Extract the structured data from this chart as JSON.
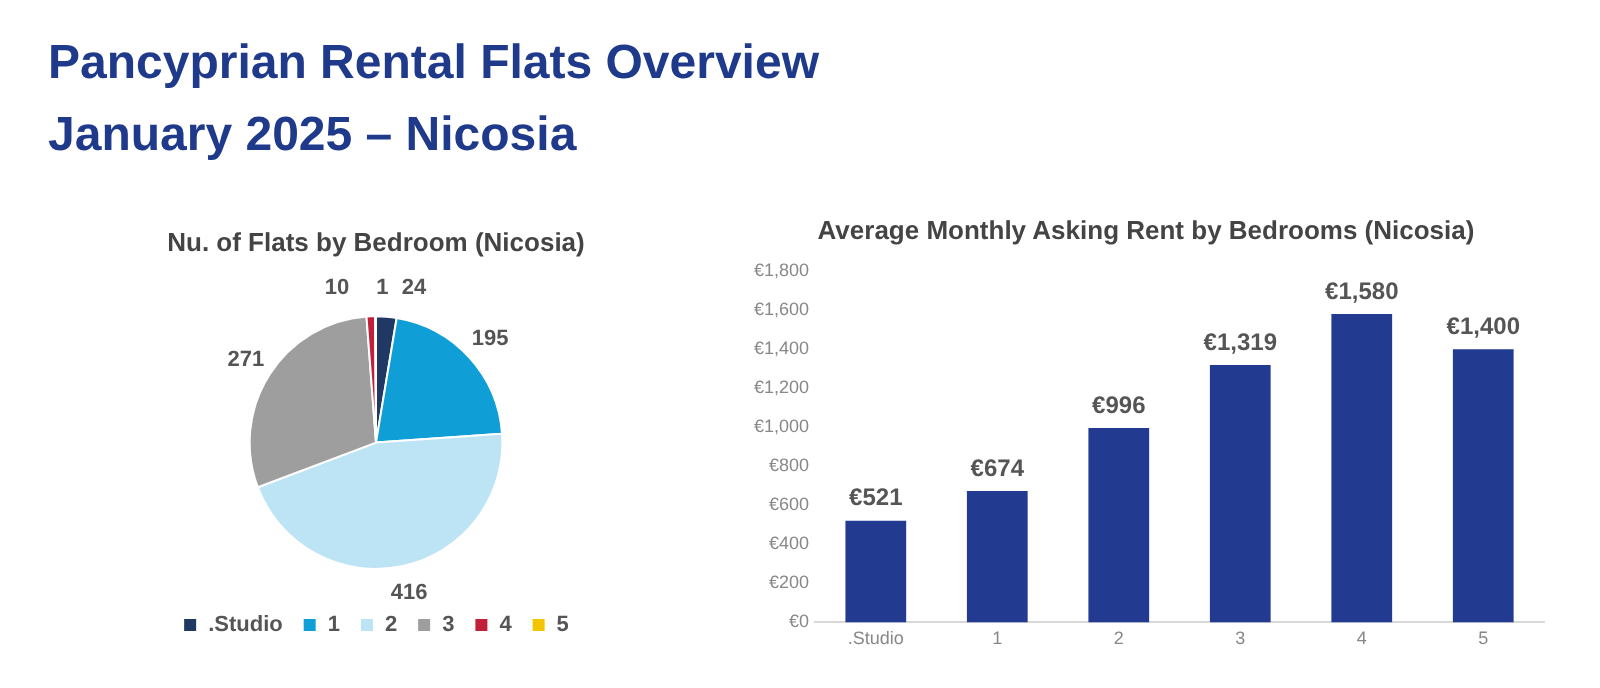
{
  "chart_data": [
    {
      "type": "other",
      "title": "Pancyprian Rental Flats Overview",
      "subtitle": "January 2025 – Nicosia"
    },
    {
      "type": "pie",
      "title": "Nu. of Flats by Bedroom (Nicosia)",
      "categories": [
        ".Studio",
        "1",
        "2",
        "3",
        "4",
        "5"
      ],
      "values": [
        24,
        195,
        416,
        271,
        10,
        1
      ],
      "colors": [
        "#203864",
        "#0f9ed5",
        "#bde4f4",
        "#9e9e9e",
        "#c0203a",
        "#f2c500"
      ],
      "data_labels": true,
      "legend": "bottom"
    },
    {
      "type": "bar",
      "title": "Average Monthly Asking Rent by Bedrooms (Nicosia)",
      "categories": [
        ".Studio",
        "1",
        "2",
        "3",
        "4",
        "5"
      ],
      "values": [
        521,
        674,
        996,
        1319,
        1580,
        1400
      ],
      "color": "#223a8f",
      "value_labels": [
        "€521",
        "€674",
        "€996",
        "€1,319",
        "€1,580",
        "€1,400"
      ],
      "ylim": [
        0,
        1800
      ],
      "yticks": [
        {
          "value": 0,
          "label": "€0"
        },
        {
          "value": 200,
          "label": "€200"
        },
        {
          "value": 400,
          "label": "€400"
        },
        {
          "value": 600,
          "label": "€600"
        },
        {
          "value": 800,
          "label": "€800"
        },
        {
          "value": 1000,
          "label": "€1,000"
        },
        {
          "value": 1200,
          "label": "€1,200"
        },
        {
          "value": 1400,
          "label": "€1,400"
        },
        {
          "value": 1600,
          "label": "€1,600"
        },
        {
          "value": 1800,
          "label": "€1,800"
        }
      ],
      "grid": false,
      "legend": false
    }
  ]
}
